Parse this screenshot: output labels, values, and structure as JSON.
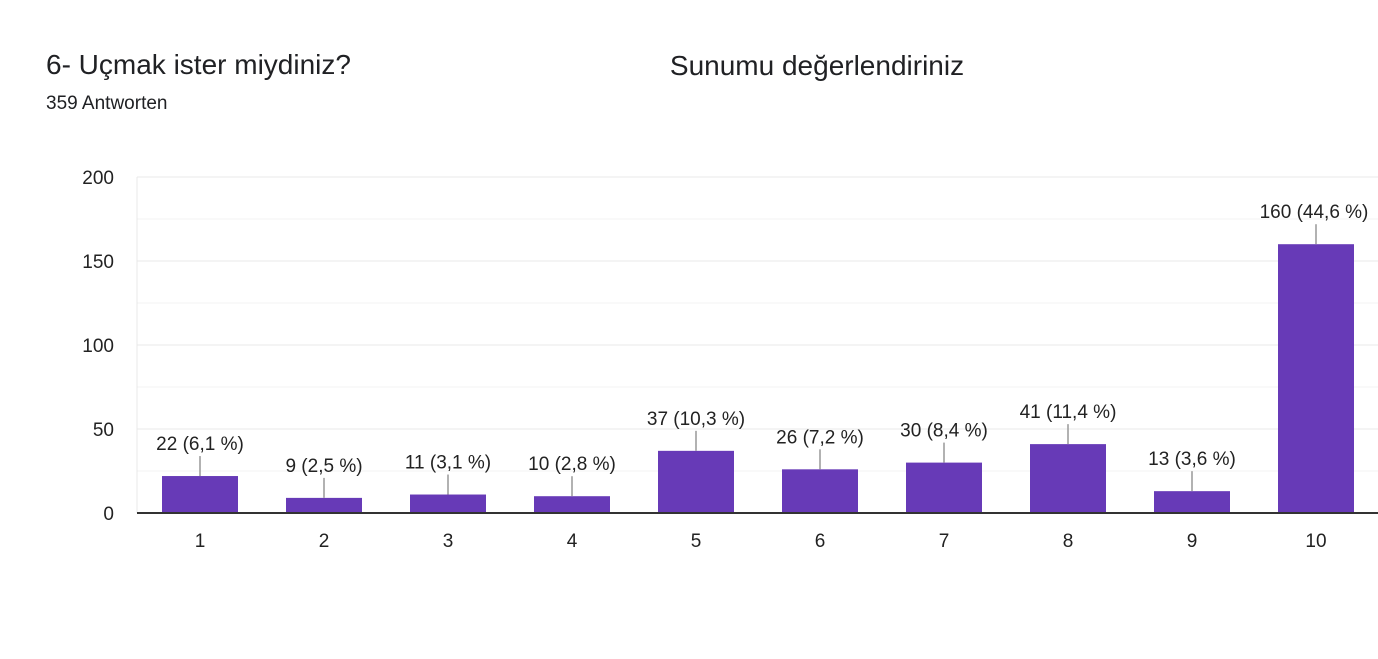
{
  "question": {
    "title": "6- Uçmak ister miydiniz?",
    "response_count": "359 Antworten"
  },
  "colors": {
    "bar": "#673ab7",
    "gridline": "#e8e8e8",
    "minor_gridline": "#f3f3f3",
    "axis": "#333333",
    "text": "#222222",
    "leader": "#999999"
  },
  "chart_data": {
    "type": "bar",
    "title": "Sunumu değerlendiriniz",
    "xlabel": "",
    "ylabel": "",
    "ylim": [
      0,
      200
    ],
    "yticks": [
      0,
      50,
      100,
      150,
      200
    ],
    "grid": true,
    "legend": "none",
    "categories": [
      "1",
      "2",
      "3",
      "4",
      "5",
      "6",
      "7",
      "8",
      "9",
      "10"
    ],
    "values": [
      22,
      9,
      11,
      10,
      37,
      26,
      30,
      41,
      13,
      160
    ],
    "data_labels": [
      "22 (6,1 %)",
      "9 (2,5 %)",
      "11 (3,1 %)",
      "10 (2,8 %)",
      "37 (10,3 %)",
      "26 (7,2 %)",
      "30 (8,4 %)",
      "41 (11,4 %)",
      "13 (3,6 %)",
      "160 (44,6 %)"
    ]
  }
}
